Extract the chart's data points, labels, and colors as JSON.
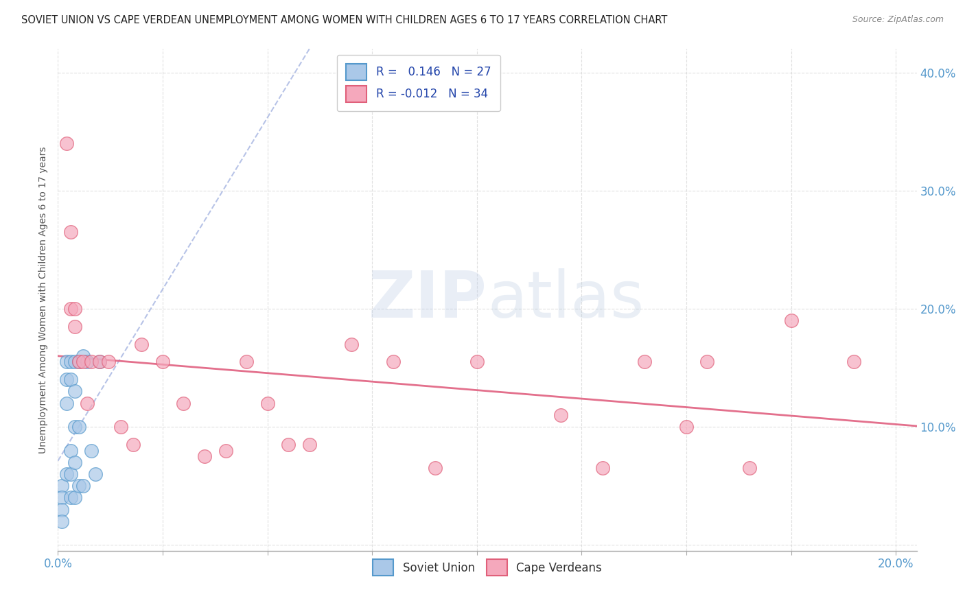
{
  "title": "SOVIET UNION VS CAPE VERDEAN UNEMPLOYMENT AMONG WOMEN WITH CHILDREN AGES 6 TO 17 YEARS CORRELATION CHART",
  "source": "Source: ZipAtlas.com",
  "ylabel": "Unemployment Among Women with Children Ages 6 to 17 years",
  "xlim": [
    0.0,
    0.205
  ],
  "ylim": [
    -0.005,
    0.42
  ],
  "xtick_positions": [
    0.0,
    0.025,
    0.05,
    0.075,
    0.1,
    0.125,
    0.15,
    0.175,
    0.2
  ],
  "ytick_positions": [
    0.0,
    0.1,
    0.2,
    0.3,
    0.4
  ],
  "soviet_R": 0.146,
  "soviet_N": 27,
  "cape_R": -0.012,
  "cape_N": 34,
  "soviet_color": "#aac8e8",
  "soviet_edge": "#5599cc",
  "cape_color": "#f5a8bc",
  "cape_edge": "#e0607a",
  "soviet_trend_color": "#99aadd",
  "cape_trend_color": "#e06080",
  "background_color": "#ffffff",
  "grid_color": "#cccccc",
  "title_color": "#222222",
  "axis_label_color": "#5599cc",
  "soviet_x": [
    0.001,
    0.001,
    0.001,
    0.001,
    0.002,
    0.002,
    0.002,
    0.002,
    0.003,
    0.003,
    0.003,
    0.003,
    0.003,
    0.004,
    0.004,
    0.004,
    0.004,
    0.004,
    0.005,
    0.005,
    0.005,
    0.006,
    0.006,
    0.007,
    0.008,
    0.009,
    0.01
  ],
  "soviet_y": [
    0.05,
    0.04,
    0.03,
    0.02,
    0.155,
    0.14,
    0.12,
    0.06,
    0.155,
    0.14,
    0.08,
    0.06,
    0.04,
    0.155,
    0.13,
    0.1,
    0.07,
    0.04,
    0.155,
    0.1,
    0.05,
    0.16,
    0.05,
    0.155,
    0.08,
    0.06,
    0.155
  ],
  "cape_x": [
    0.002,
    0.003,
    0.003,
    0.004,
    0.004,
    0.005,
    0.006,
    0.007,
    0.008,
    0.01,
    0.012,
    0.015,
    0.018,
    0.02,
    0.025,
    0.03,
    0.035,
    0.04,
    0.045,
    0.05,
    0.055,
    0.06,
    0.07,
    0.08,
    0.09,
    0.1,
    0.12,
    0.13,
    0.14,
    0.15,
    0.155,
    0.165,
    0.175,
    0.19
  ],
  "cape_y": [
    0.34,
    0.265,
    0.2,
    0.2,
    0.185,
    0.155,
    0.155,
    0.12,
    0.155,
    0.155,
    0.155,
    0.1,
    0.085,
    0.17,
    0.155,
    0.12,
    0.075,
    0.08,
    0.155,
    0.12,
    0.085,
    0.085,
    0.17,
    0.155,
    0.065,
    0.155,
    0.11,
    0.065,
    0.155,
    0.1,
    0.155,
    0.065,
    0.19,
    0.155
  ]
}
